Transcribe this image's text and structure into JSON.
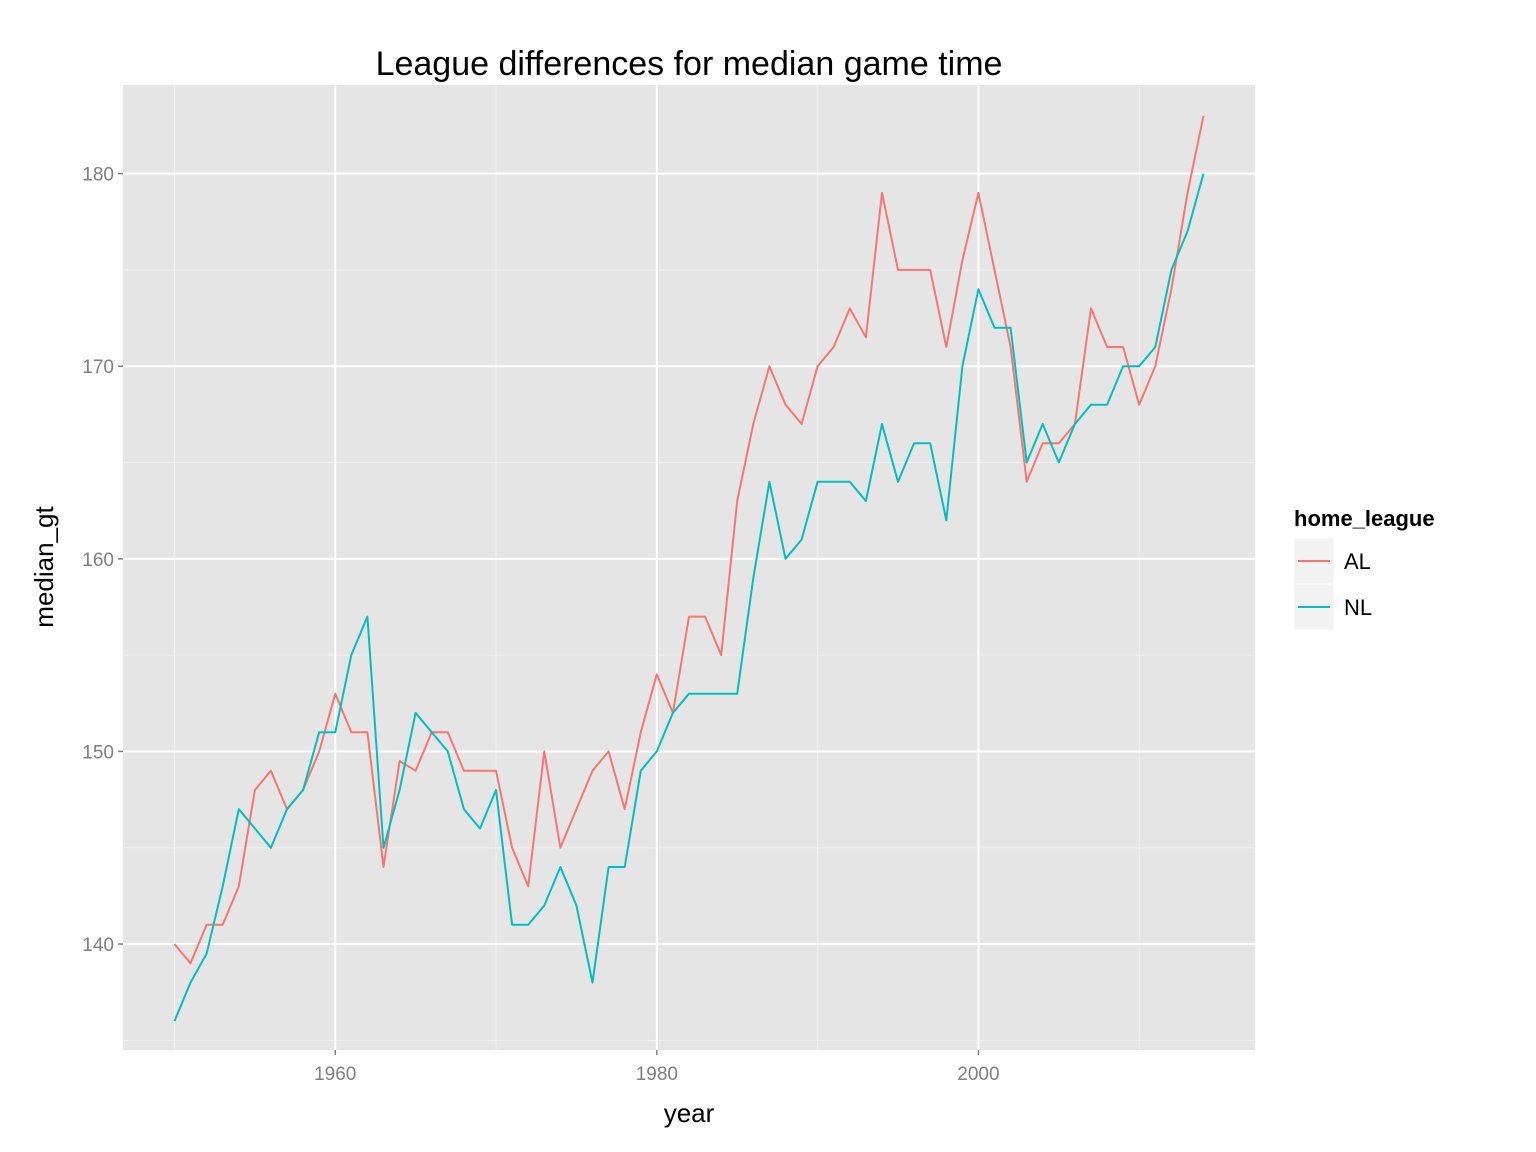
{
  "chart_data": {
    "type": "line",
    "title": "League differences for median game time",
    "xlabel": "year",
    "ylabel": "median_gt",
    "xlim": [
      1946.8,
      2017.2
    ],
    "ylim": [
      134.5,
      184.6
    ],
    "x_ticks": [
      1960,
      1980,
      2000
    ],
    "y_ticks": [
      140,
      150,
      160,
      170,
      180
    ],
    "grid": true,
    "background": "#e5e5e5",
    "legend": {
      "title": "home_league",
      "position": "right"
    },
    "x": [
      1950,
      1951,
      1952,
      1953,
      1954,
      1955,
      1956,
      1957,
      1958,
      1959,
      1960,
      1961,
      1962,
      1963,
      1964,
      1965,
      1966,
      1967,
      1968,
      1969,
      1970,
      1971,
      1972,
      1973,
      1974,
      1975,
      1976,
      1977,
      1978,
      1979,
      1980,
      1981,
      1982,
      1983,
      1984,
      1985,
      1986,
      1987,
      1988,
      1989,
      1990,
      1991,
      1992,
      1993,
      1994,
      1995,
      1996,
      1997,
      1998,
      1999,
      2000,
      2001,
      2002,
      2003,
      2004,
      2005,
      2006,
      2007,
      2008,
      2009,
      2010,
      2011,
      2012,
      2013,
      2014
    ],
    "series": [
      {
        "name": "AL",
        "color": "#f8766d",
        "values": [
          140,
          139,
          141,
          141,
          143,
          148,
          149,
          147,
          148,
          150,
          153,
          151,
          151,
          144,
          149.5,
          149,
          151,
          151,
          149,
          149,
          149,
          145,
          143,
          150,
          145,
          147,
          149,
          150,
          147,
          151,
          154,
          152,
          157,
          157,
          155,
          163,
          167,
          170,
          168,
          167,
          170,
          171,
          173,
          171.5,
          179,
          175,
          175,
          175,
          171,
          175.5,
          179,
          175,
          171,
          164,
          166,
          166,
          167,
          173,
          171,
          171,
          168,
          170,
          174,
          179,
          183
        ]
      },
      {
        "name": "NL",
        "color": "#00bfc4",
        "values": [
          136,
          138,
          139.5,
          143,
          147,
          146,
          145,
          147,
          148,
          151,
          151,
          155,
          157,
          145,
          148,
          152,
          151,
          150,
          147,
          146,
          148,
          141,
          141,
          142,
          144,
          142,
          138,
          144,
          144,
          149,
          150,
          152,
          153,
          153,
          153,
          153,
          159,
          164,
          160,
          161,
          164,
          164,
          164,
          163,
          167,
          164,
          166,
          166,
          162,
          170,
          174,
          172,
          172,
          165,
          167,
          165,
          167,
          168,
          168,
          170,
          170,
          171,
          175,
          177,
          180
        ]
      }
    ]
  }
}
